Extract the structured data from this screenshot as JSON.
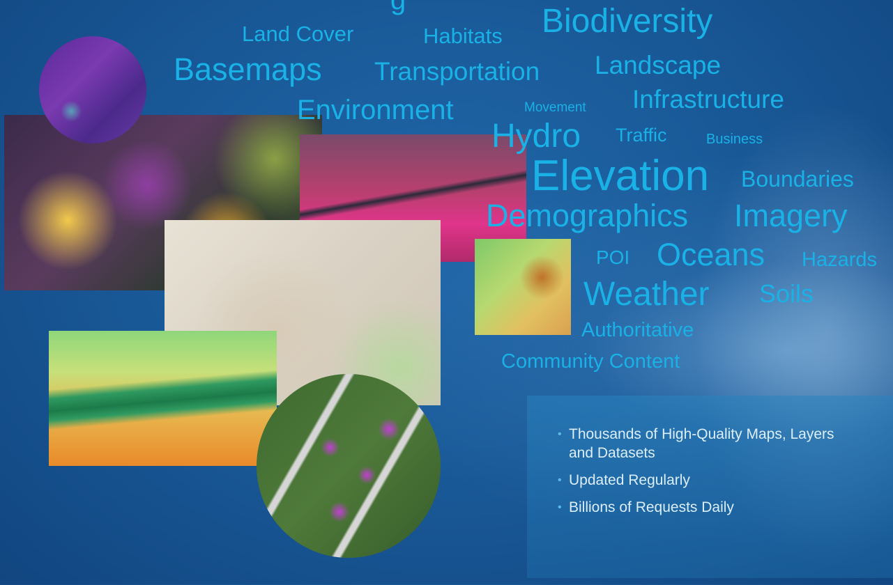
{
  "words": [
    {
      "text": "Biodiversity",
      "size": 48
    },
    {
      "text": "Land Cover",
      "size": 31
    },
    {
      "text": "Habitats",
      "size": 31
    },
    {
      "text": "Basemaps",
      "size": 45
    },
    {
      "text": "Transportation",
      "size": 37
    },
    {
      "text": "Landscape",
      "size": 37
    },
    {
      "text": "Environment",
      "size": 40
    },
    {
      "text": "Movement",
      "size": 19
    },
    {
      "text": "Infrastructure",
      "size": 37
    },
    {
      "text": "Hydro",
      "size": 48
    },
    {
      "text": "Traffic",
      "size": 27
    },
    {
      "text": "Business",
      "size": 20
    },
    {
      "text": "Elevation",
      "size": 62
    },
    {
      "text": "Boundaries",
      "size": 32
    },
    {
      "text": "Demographics",
      "size": 45
    },
    {
      "text": "Imagery",
      "size": 45
    },
    {
      "text": "POI",
      "size": 28
    },
    {
      "text": "Oceans",
      "size": 45
    },
    {
      "text": "Hazards",
      "size": 29
    },
    {
      "text": "Weather",
      "size": 48
    },
    {
      "text": "Soils",
      "size": 36
    },
    {
      "text": "Authoritative",
      "size": 29
    },
    {
      "text": "Community Content",
      "size": 29
    }
  ],
  "bullets": [
    "Thousands of High-Quality Maps, Layers and Datasets",
    "Updated Regularly",
    "Billions of Requests Daily"
  ],
  "colors": {
    "word": "#19b1e6",
    "bullet_text": "#dbeefa"
  }
}
